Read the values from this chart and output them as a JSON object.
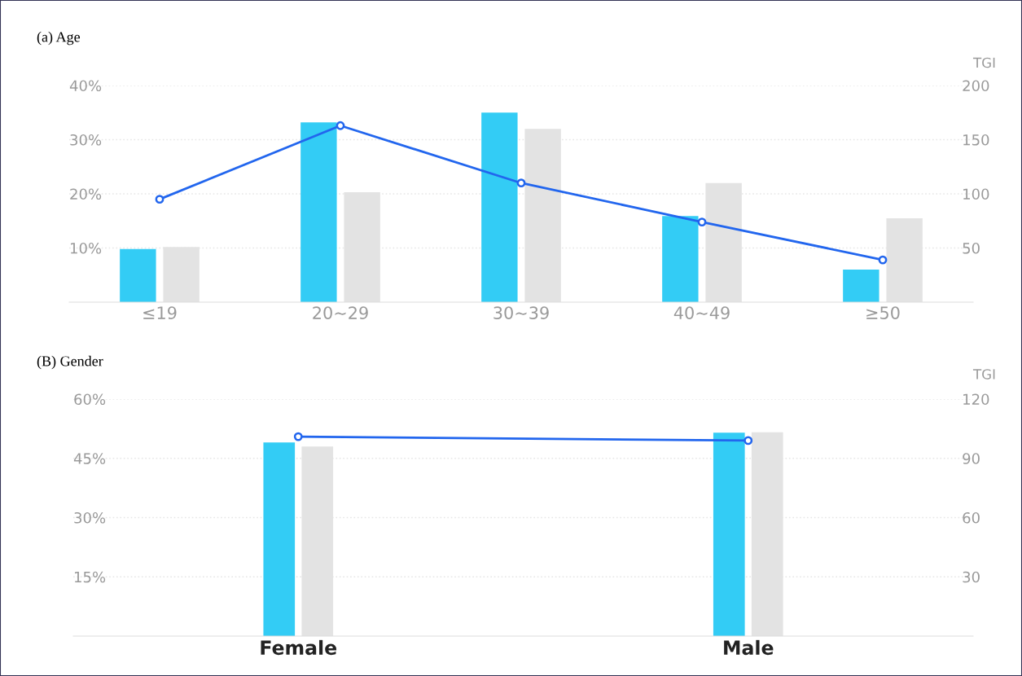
{
  "chart_data": [
    {
      "type": "bar",
      "title": "(a) Age",
      "y2label": "TGI",
      "categories": [
        "≤19",
        "20~29",
        "30~39",
        "40~49",
        "≥50"
      ],
      "series": [
        {
          "color": "#33ccf5",
          "values": [
            9.8,
            33.2,
            35.0,
            15.9,
            6.0
          ]
        },
        {
          "color": "#e3e3e3",
          "values": [
            10.2,
            20.3,
            32.0,
            22.0,
            15.5
          ]
        },
        {
          "type": "line",
          "axis": "y2",
          "color": "#2266ee",
          "marker": "circle",
          "values": [
            95,
            163,
            110,
            74,
            39
          ]
        }
      ],
      "ylim": [
        0,
        40
      ],
      "yticks": [
        {
          "value": 10,
          "label": "10%"
        },
        {
          "value": 20,
          "label": "20%"
        },
        {
          "value": 30,
          "label": "30%"
        },
        {
          "value": 40,
          "label": "40%"
        }
      ],
      "y2lim": [
        0,
        200
      ],
      "y2ticks": [
        50,
        100,
        150,
        200
      ],
      "grid": "y"
    },
    {
      "type": "bar",
      "title": "(B) Gender",
      "y2label": "TGI",
      "categories": [
        "Female",
        "Male"
      ],
      "series": [
        {
          "color": "#33ccf5",
          "values": [
            49.0,
            51.5
          ]
        },
        {
          "color": "#e3e3e3",
          "values": [
            48.0,
            51.6
          ]
        },
        {
          "type": "line",
          "axis": "y2",
          "color": "#2266ee",
          "marker": "circle",
          "values": [
            101,
            99
          ]
        }
      ],
      "ylim": [
        0,
        60
      ],
      "yticks": [
        {
          "value": 15,
          "label": "15%"
        },
        {
          "value": 30,
          "label": "30%"
        },
        {
          "value": 45,
          "label": "45%"
        },
        {
          "value": 60,
          "label": "60%"
        }
      ],
      "y2lim": [
        0,
        120
      ],
      "y2ticks": [
        30,
        60,
        90,
        120
      ],
      "grid": "y"
    }
  ]
}
